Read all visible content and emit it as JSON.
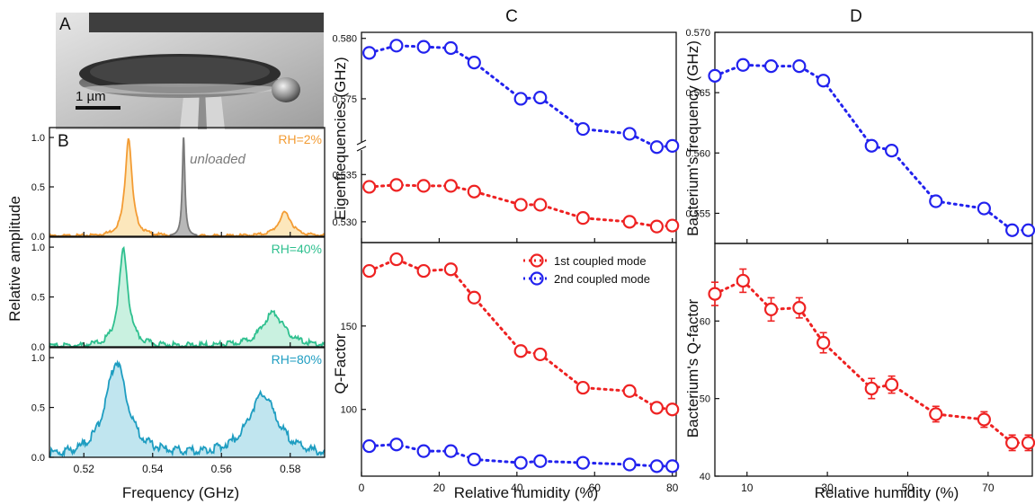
{
  "panel_letters": {
    "a": "A",
    "b": "B",
    "c": "C",
    "d": "D"
  },
  "micrograph": {
    "scale_bar_label": "1 µm"
  },
  "colors": {
    "orange": "#F39C34",
    "orange_fill": "#FBE3B0",
    "teal": "#2FC08F",
    "teal_fill": "#BFEEDB",
    "cyan": "#1E9DC1",
    "cyan_fill": "#B5E0EC",
    "gray": "#7A7A7A",
    "gray_fill": "#B8B8B8",
    "red": "#EE2222",
    "blue": "#2222EE"
  },
  "chart_data": [
    {
      "id": "B",
      "type": "area",
      "xlabel": "Frequency (GHz)",
      "ylabel": "Relative amplitude",
      "xlim": [
        0.51,
        0.59
      ],
      "ylim": [
        0,
        1.1
      ],
      "xticks": [
        0.52,
        0.54,
        0.56,
        0.58
      ],
      "xtick_labels": [
        "0.52",
        "0.54",
        "0.56",
        "0.58"
      ],
      "yticks": [
        0.0,
        0.5,
        1.0
      ],
      "ytick_labels": [
        "0.0",
        "0.5",
        "1.0"
      ],
      "subplots": [
        {
          "label": "RH=2%",
          "color_key": "orange",
          "peaks": [
            {
              "f0": 0.533,
              "hw": 0.0012,
              "amp": 1.0
            },
            {
              "f0": 0.5785,
              "hw": 0.0022,
              "amp": 0.24
            }
          ],
          "reference": {
            "label": "unloaded",
            "f0": 0.549,
            "hw": 0.00045,
            "amp": 1.0,
            "color_key": "gray"
          }
        },
        {
          "label": "RH=40%",
          "color_key": "teal",
          "peaks": [
            {
              "f0": 0.5315,
              "hw": 0.0016,
              "amp": 0.97
            },
            {
              "f0": 0.575,
              "hw": 0.0038,
              "amp": 0.34
            }
          ]
        },
        {
          "label": "RH=80%",
          "color_key": "cyan",
          "peaks": [
            {
              "f0": 0.5295,
              "hw": 0.0038,
              "amp": 0.95
            },
            {
              "f0": 0.572,
              "hw": 0.0052,
              "amp": 0.62
            }
          ]
        }
      ]
    },
    {
      "id": "C-top",
      "type": "scatter",
      "ylabel": "Eigenfrequencies (GHz)",
      "xlim": [
        0,
        81
      ],
      "axis_break": true,
      "upper_ylim": [
        0.5715,
        0.5805
      ],
      "upper_yticks": [
        0.575,
        0.58
      ],
      "upper_ytick_labels": [
        "0.575",
        "0.580"
      ],
      "lower_ylim": [
        0.5278,
        0.5375
      ],
      "lower_yticks": [
        0.53,
        0.535
      ],
      "lower_ytick_labels": [
        "0.530",
        "0.535"
      ],
      "series": [
        {
          "name": "1st coupled mode",
          "color_key": "red",
          "segment": "lower",
          "x": [
            2,
            9,
            16,
            23,
            29,
            41,
            46,
            57,
            69,
            76,
            80
          ],
          "y": [
            0.5337,
            0.5339,
            0.5338,
            0.5338,
            0.5332,
            0.5318,
            0.5318,
            0.5304,
            0.53,
            0.5295,
            0.5296
          ]
        },
        {
          "name": "2nd coupled mode",
          "color_key": "blue",
          "segment": "upper",
          "x": [
            2,
            9,
            16,
            23,
            29,
            41,
            46,
            57,
            69,
            76,
            80
          ],
          "y": [
            0.5788,
            0.5794,
            0.5793,
            0.5792,
            0.578,
            0.575,
            0.5751,
            0.5725,
            0.5721,
            0.571,
            0.5711
          ]
        }
      ]
    },
    {
      "id": "C-bottom",
      "type": "scatter",
      "xlabel": "Relative humidity (%)",
      "ylabel": "Q-Factor",
      "xlim": [
        0,
        81
      ],
      "ylim": [
        60,
        200
      ],
      "xticks": [
        0,
        20,
        40,
        60,
        80
      ],
      "xtick_labels": [
        "0",
        "20",
        "40",
        "60",
        "80"
      ],
      "yticks": [
        100,
        150
      ],
      "ytick_labels": [
        "100",
        "150"
      ],
      "legend_position": "top-right",
      "series": [
        {
          "name": "1st coupled mode",
          "color_key": "red",
          "x": [
            2,
            9,
            16,
            23,
            29,
            41,
            46,
            57,
            69,
            76,
            80
          ],
          "y": [
            183,
            190,
            183,
            184,
            167,
            135,
            133,
            113,
            111,
            101,
            100
          ]
        },
        {
          "name": "2nd coupled mode",
          "color_key": "blue",
          "x": [
            2,
            9,
            16,
            23,
            29,
            41,
            46,
            57,
            69,
            76,
            80
          ],
          "y": [
            78,
            79,
            75,
            75,
            70,
            68,
            69,
            68,
            67,
            66,
            66
          ]
        }
      ]
    },
    {
      "id": "D-top",
      "type": "scatter",
      "ylabel": "Bacterium's frequency (GHz)",
      "xlim": [
        2,
        81
      ],
      "ylim": [
        0.5525,
        0.57
      ],
      "yticks": [
        0.555,
        0.56,
        0.565,
        0.57
      ],
      "ytick_labels": [
        "0.555",
        "0.560",
        "0.565",
        "0.570"
      ],
      "series": [
        {
          "color_key": "blue",
          "x": [
            2,
            9,
            16,
            23,
            29,
            41,
            46,
            57,
            69,
            76,
            80
          ],
          "y": [
            0.5664,
            0.5673,
            0.5672,
            0.5672,
            0.566,
            0.5606,
            0.5602,
            0.556,
            0.5554,
            0.5536,
            0.5536
          ],
          "err": [
            0.0003,
            0.0003,
            0.0003,
            0.0003,
            0.0003,
            0.0003,
            0.0003,
            0.0003,
            0.0003,
            0.0003,
            0.0003
          ]
        }
      ]
    },
    {
      "id": "D-bottom",
      "type": "scatter",
      "xlabel": "Relative humidity (%)",
      "ylabel": "Bacterium's Q-factor",
      "xlim": [
        2,
        81
      ],
      "ylim": [
        40,
        70
      ],
      "xticks": [
        10,
        30,
        50,
        70
      ],
      "xtick_labels": [
        "10",
        "30",
        "50",
        "70"
      ],
      "yticks": [
        40,
        50,
        60
      ],
      "ytick_labels": [
        "40",
        "50",
        "60"
      ],
      "series": [
        {
          "color_key": "red",
          "x": [
            2,
            9,
            16,
            23,
            29,
            41,
            46,
            57,
            69,
            76,
            80
          ],
          "y": [
            63.5,
            65.2,
            61.5,
            61.7,
            57.2,
            51.3,
            51.8,
            48.0,
            47.3,
            44.3,
            44.3
          ],
          "err": [
            1.5,
            1.5,
            1.5,
            1.3,
            1.3,
            1.3,
            1.1,
            1.0,
            1.0,
            1.0,
            1.0
          ]
        }
      ]
    }
  ]
}
